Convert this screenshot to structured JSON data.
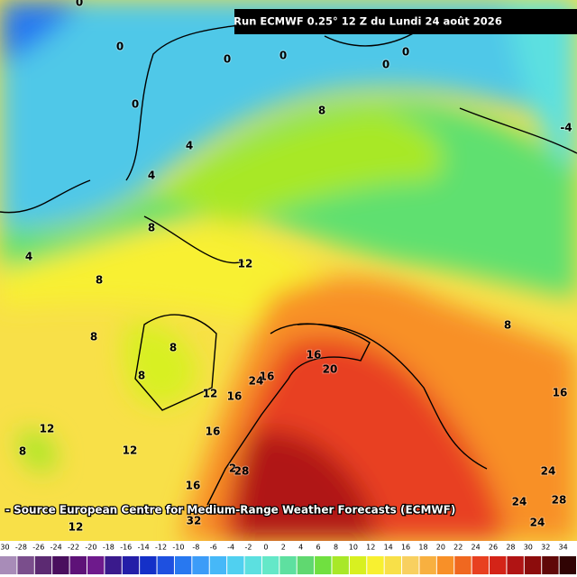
{
  "header": {
    "title": "Run ECMWF 0.25° 12 Z du Lundi 24 août 2026"
  },
  "source": "- Source European Centre for Medium-Range Weather Forecasts (ECMWF)",
  "contour_labels": [
    "0",
    "0",
    "0",
    "0",
    "0",
    "0",
    "0",
    "8",
    "4",
    "4",
    "8",
    "4",
    "12",
    "8",
    "8",
    "8",
    "8",
    "16",
    "8",
    "20",
    "16",
    "24",
    "12",
    "16",
    "16",
    "12",
    "16",
    "12",
    "8",
    "2",
    "28",
    "24",
    "16",
    "24",
    "28",
    "12",
    "32",
    "24",
    "-4"
  ],
  "scale": {
    "ticks": [
      -30,
      -28,
      -26,
      -24,
      -22,
      -20,
      -18,
      -16,
      -14,
      -12,
      -10,
      -8,
      -6,
      -4,
      -2,
      0,
      2,
      4,
      6,
      8,
      10,
      12,
      14,
      16,
      18,
      20,
      22,
      24,
      26,
      28,
      30,
      32,
      34
    ],
    "colors": [
      "#a88cb8",
      "#7a4e8c",
      "#5c2a72",
      "#4a0f5e",
      "#5e1278",
      "#6e1a8c",
      "#3a1a8c",
      "#241ea8",
      "#1430c8",
      "#1e50e0",
      "#2878f0",
      "#3c9cf8",
      "#46b8f8",
      "#50d0f0",
      "#5ce0e0",
      "#64e8c8",
      "#5ee0a0",
      "#60d870",
      "#70e040",
      "#a8e828",
      "#d8f020",
      "#f8f030",
      "#f8e048",
      "#f8d060",
      "#f8b040",
      "#f89028",
      "#f06820",
      "#e84020",
      "#d42418",
      "#b01414",
      "#8c0c0c",
      "#600808",
      "#300404"
    ]
  }
}
